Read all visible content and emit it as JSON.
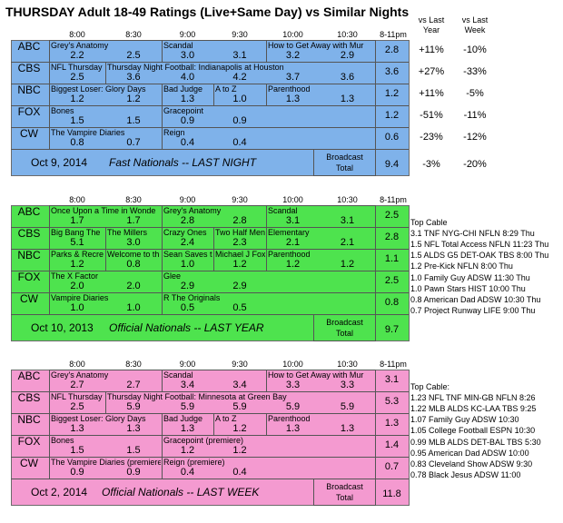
{
  "title": "THURSDAY Adult 18-49 Ratings (Live+Same Day) vs Similar Nights",
  "column_headers": {
    "times": [
      "8:00",
      "8:30",
      "9:00",
      "9:30",
      "10:00",
      "10:30"
    ],
    "total": "8-11pm",
    "vs_last_year": [
      "vs Last",
      "Year"
    ],
    "vs_last_week": [
      "vs Last",
      "Week"
    ]
  },
  "panels": [
    {
      "rows": [
        {
          "net": "ABC",
          "shows": [
            "Grey's Anatomy",
            "Scandal",
            "How to Get Away with Mur"
          ],
          "values": [
            "2.2",
            "2.5",
            "3.0",
            "3.1",
            "3.2",
            "2.9"
          ],
          "total": "2.8",
          "vs_year": "+11%",
          "vs_week": "-10%"
        },
        {
          "net": "CBS",
          "shows": [
            "NFL Thursday",
            "Thursday Night Football: Indianapolis at Houston"
          ],
          "values": [
            "2.5",
            "3.6",
            "4.0",
            "4.2",
            "3.7",
            "3.6"
          ],
          "total": "3.6",
          "vs_year": "+27%",
          "vs_week": "-33%"
        },
        {
          "net": "NBC",
          "shows": [
            "Biggest Loser: Glory Days",
            "Bad Judge",
            "A to Z",
            "Parenthood"
          ],
          "values": [
            "1.2",
            "1.2",
            "1.3",
            "1.0",
            "1.3",
            "1.3"
          ],
          "total": "1.2",
          "vs_year": "+11%",
          "vs_week": "-5%"
        },
        {
          "net": "FOX",
          "shows": [
            "Bones",
            "Gracepoint"
          ],
          "values": [
            "1.5",
            "1.5",
            "0.9",
            "0.9"
          ],
          "total": "1.2",
          "vs_year": "-51%",
          "vs_week": "-11%"
        },
        {
          "net": "CW",
          "shows": [
            "The Vampire Diaries",
            "Reign"
          ],
          "values": [
            "0.8",
            "0.7",
            "0.4",
            "0.4"
          ],
          "total": "0.6",
          "vs_year": "-23%",
          "vs_week": "-12%"
        }
      ],
      "footer_date": "Oct 9, 2014",
      "footer_label": "Fast Nationals -- LAST NIGHT",
      "broadcast_label": [
        "Broadcast",
        "Total"
      ],
      "broadcast_total": "9.4",
      "broadcast_vs_year": "-3%",
      "broadcast_vs_week": "-20%"
    },
    {
      "rows": [
        {
          "net": "ABC",
          "shows": [
            "Once Upon a Time in Wonde",
            "Grey's Anatomy",
            "Scandal"
          ],
          "values": [
            "1.7",
            "1.7",
            "2.8",
            "2.8",
            "3.1",
            "3.1"
          ],
          "total": "2.5"
        },
        {
          "net": "CBS",
          "shows": [
            "Big Bang The",
            "The Millers",
            "Crazy Ones",
            "Two Half Men",
            "Elementary"
          ],
          "values": [
            "5.1",
            "3.0",
            "2.4",
            "2.3",
            "2.1",
            "2.1"
          ],
          "total": "2.8"
        },
        {
          "net": "NBC",
          "shows": [
            "Parks & Recre",
            "Welcome to th",
            "Sean Saves the",
            "Michael J Fox",
            "Parenthood"
          ],
          "values": [
            "1.2",
            "0.8",
            "1.0",
            "1.2",
            "1.2",
            "1.2"
          ],
          "total": "1.1"
        },
        {
          "net": "FOX",
          "shows": [
            "The X Factor",
            "Glee"
          ],
          "values": [
            "2.0",
            "2.0",
            "2.9",
            "2.9"
          ],
          "total": "2.5"
        },
        {
          "net": "CW",
          "shows": [
            "Vampire Diaries",
            "R The Originals"
          ],
          "values": [
            "1.0",
            "1.0",
            "0.5",
            "0.5"
          ],
          "total": "0.8"
        }
      ],
      "footer_date": "Oct 10, 2013",
      "footer_label": "Official Nationals -- LAST YEAR",
      "broadcast_label": [
        "Broadcast",
        "Total"
      ],
      "broadcast_total": "9.7",
      "top_cable_title": "Top Cable",
      "top_cable": [
        "3.1 TNF NYG-CHI NFLN 8:29 Thu",
        "1.5 NFL Total Access NFLN 11:23 Thu",
        "1.5 ALDS G5 DET-OAK TBS 8:00 Thu",
        "1.2 Pre-Kick NFLN 8:00 Thu",
        "1.0 Family Guy ADSW 11:30 Thu",
        "1.0 Pawn Stars HIST 10:00 Thu",
        "0.8 American Dad ADSW 10:30 Thu",
        "0.7 Project Runway LIFE 9:00 Thu"
      ]
    },
    {
      "rows": [
        {
          "net": "ABC",
          "shows": [
            "Grey's Anatomy",
            "Scandal",
            "How to Get Away with Mur"
          ],
          "values": [
            "2.7",
            "2.7",
            "3.4",
            "3.4",
            "3.3",
            "3.3"
          ],
          "total": "3.1"
        },
        {
          "net": "CBS",
          "shows": [
            "NFL Thursday",
            "Thursday Night Football: Minnesota at Green Bay"
          ],
          "values": [
            "2.5",
            "5.9",
            "5.9",
            "5.9",
            "5.9",
            "5.9"
          ],
          "total": "5.3"
        },
        {
          "net": "NBC",
          "shows": [
            "Biggest Loser: Glory Days",
            "Bad Judge",
            "A to Z",
            "Parenthood"
          ],
          "values": [
            "1.3",
            "1.3",
            "1.3",
            "1.2",
            "1.3",
            "1.3"
          ],
          "total": "1.3"
        },
        {
          "net": "FOX",
          "shows": [
            "Bones",
            "Gracepoint (premiere)"
          ],
          "values": [
            "1.5",
            "1.5",
            "1.2",
            "1.2"
          ],
          "total": "1.4"
        },
        {
          "net": "CW",
          "shows": [
            "The Vampire Diaries (premiere)",
            "Reign (premiere)"
          ],
          "values": [
            "0.9",
            "0.9",
            "0.4",
            "0.4"
          ],
          "total": "0.7"
        }
      ],
      "footer_date": "Oct 2, 2014",
      "footer_label": "Official Nationals -- LAST WEEK",
      "broadcast_label": [
        "Broadcast",
        "Total"
      ],
      "broadcast_total": "11.8",
      "top_cable_title": "Top Cable:",
      "top_cable": [
        "1.23 NFL TNF MIN-GB NFLN 8:26",
        "1.22 MLB ALDS KC-LAA TBS 9:25",
        "1.07 Family Guy ADSW 10:30",
        "1.05 College Football ESPN 10:30",
        "0.99 MLB ALDS DET-BAL TBS 5:30",
        "0.95 American Dad ADSW 10:00",
        "0.83 Cleveland Show ADSW 9:30",
        "0.78 Black Jesus ADSW 11:00"
      ]
    }
  ]
}
